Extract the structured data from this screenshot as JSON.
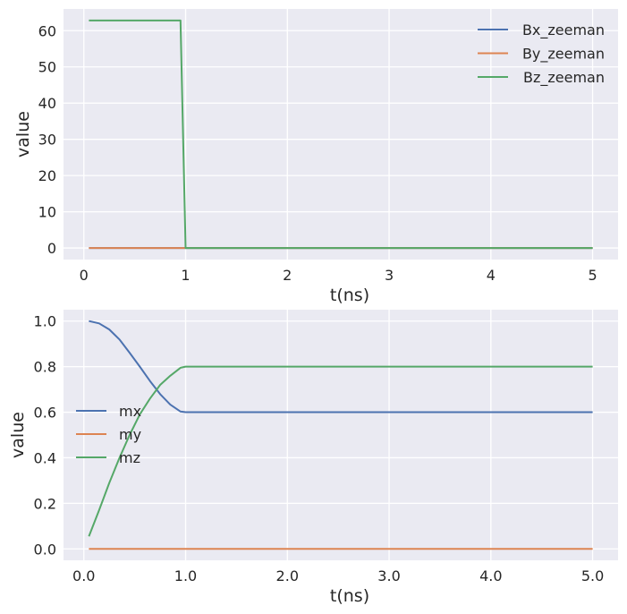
{
  "chart_data": [
    {
      "type": "line",
      "title": "",
      "xlabel": "t(ns)",
      "ylabel": "value",
      "xlim": [
        -0.2,
        5.25
      ],
      "ylim": [
        -3.2,
        66.0
      ],
      "xticks": [
        0,
        1,
        2,
        3,
        4,
        5
      ],
      "yticks": [
        0,
        10,
        20,
        30,
        40,
        50,
        60
      ],
      "grid": true,
      "legend_position": "top-right",
      "series": [
        {
          "name": "Bx_zeeman",
          "color": "#4c72b0",
          "x": [
            0.05,
            0.95,
            1.0,
            5.0
          ],
          "y": [
            0,
            0,
            0,
            0
          ]
        },
        {
          "name": "By_zeeman",
          "color": "#dd8452",
          "x": [
            0.05,
            0.95,
            1.0,
            5.0
          ],
          "y": [
            0,
            0,
            0,
            0
          ]
        },
        {
          "name": "Bz_zeeman",
          "color": "#55a868",
          "x": [
            0.05,
            0.95,
            1.0,
            5.0
          ],
          "y": [
            62.8,
            62.8,
            0,
            0
          ]
        }
      ]
    },
    {
      "type": "line",
      "title": "",
      "xlabel": "t(ns)",
      "ylabel": "value",
      "xlim": [
        -0.2,
        5.25
      ],
      "ylim": [
        -0.05,
        1.05
      ],
      "xticks": [
        0,
        1,
        2,
        3,
        4,
        5
      ],
      "yticks": [
        0.0,
        0.2,
        0.4,
        0.6,
        0.8,
        1.0
      ],
      "grid": true,
      "legend_position": "center-left",
      "series": [
        {
          "name": "mx",
          "color": "#4c72b0",
          "x": [
            0.05,
            0.15,
            0.25,
            0.35,
            0.45,
            0.55,
            0.65,
            0.75,
            0.85,
            0.95,
            1.0,
            5.0
          ],
          "y": [
            1.0,
            0.99,
            0.963,
            0.919,
            0.861,
            0.8,
            0.737,
            0.679,
            0.633,
            0.603,
            0.6,
            0.6
          ]
        },
        {
          "name": "my",
          "color": "#dd8452",
          "x": [
            0.05,
            1.0,
            5.0
          ],
          "y": [
            0,
            0,
            0
          ]
        },
        {
          "name": "mz",
          "color": "#55a868",
          "x": [
            0.05,
            0.15,
            0.25,
            0.35,
            0.45,
            0.55,
            0.65,
            0.75,
            0.85,
            0.95,
            1.0,
            5.0
          ],
          "y": [
            0.055,
            0.17,
            0.29,
            0.4,
            0.5,
            0.59,
            0.66,
            0.72,
            0.76,
            0.795,
            0.8,
            0.8
          ]
        }
      ]
    }
  ]
}
